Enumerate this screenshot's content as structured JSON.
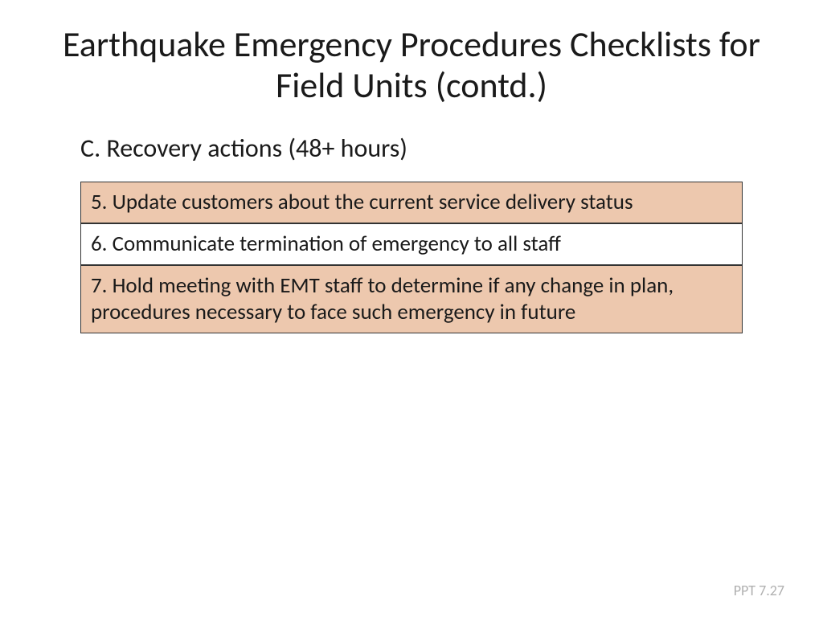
{
  "slide": {
    "title": "Earthquake Emergency Procedures Checklists for Field Units (contd.)",
    "subtitle": "C.  Recovery actions (48+ hours)",
    "footer": "PPT 7.27"
  },
  "table": {
    "rows": [
      "5. Update customers about the current service delivery status",
      "6. Communicate termination of emergency to all staff",
      "7. Hold meeting with EMT staff to determine if any change in plan, procedures necessary to face such emergency in future"
    ],
    "row_bg_odd": "#edc8ae",
    "row_bg_even": "#ffffff",
    "border_color": "#333333",
    "font_size": 27,
    "text_color": "#1a1a1a"
  },
  "styles": {
    "title_fontsize": 44,
    "subtitle_fontsize": 32,
    "background": "#ffffff",
    "footer_color": "#b0b0b0",
    "footer_fontsize": 18
  }
}
